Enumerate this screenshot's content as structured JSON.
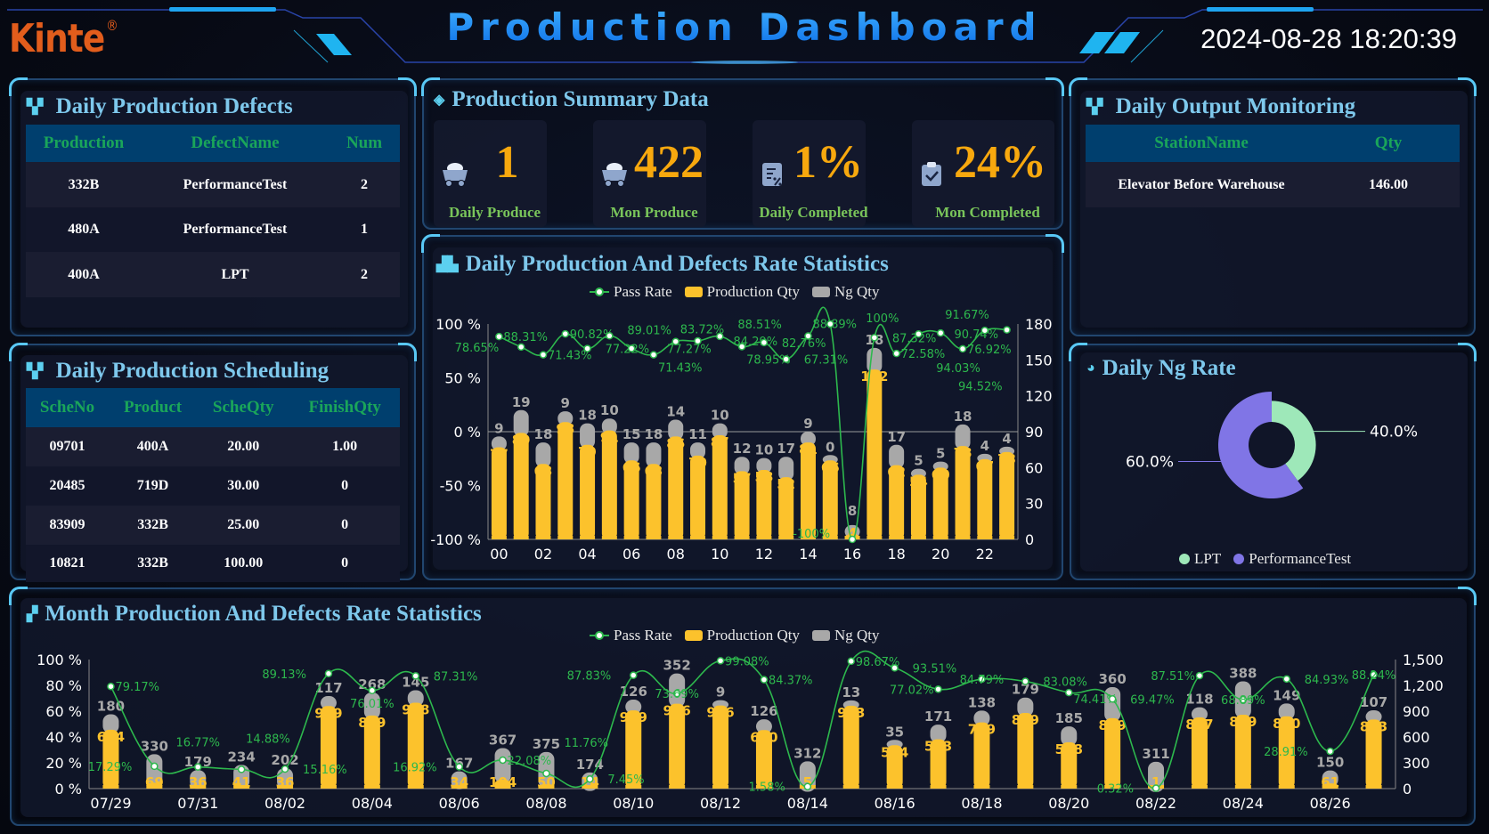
{
  "header": {
    "logo": "Kinte",
    "title": "Production Dashboard",
    "datetime": "2024-08-28 18:20:39"
  },
  "colors": {
    "accent": "#59c8f5",
    "production": "#fcc22c",
    "ng": "#a8a8a8",
    "pass_rate": "#2db84d",
    "lpt": "#9ee8b9",
    "performance_test": "#8075e6",
    "table_header_bg": "#003f6e",
    "table_header_text": "#1aa55a",
    "value": "#f7a80e"
  },
  "defects": {
    "title": "Daily Production Defects",
    "icon": "grid-icon",
    "columns": [
      "Production",
      "DefectName",
      "Num"
    ],
    "rows": [
      [
        "332B",
        "PerformanceTest",
        "2"
      ],
      [
        "480A",
        "PerformanceTest",
        "1"
      ],
      [
        "400A",
        "LPT",
        "2"
      ]
    ]
  },
  "summary": {
    "title": "Production Summary Data",
    "icon": "layers-icon",
    "cards": [
      {
        "value": "1",
        "label": "Daily Produce",
        "icon": "mine-cart-icon"
      },
      {
        "value": "422",
        "label": "Mon Produce",
        "icon": "mine-cart-icon"
      },
      {
        "value": "1%",
        "label": "Daily Completed",
        "icon": "percent-document-icon"
      },
      {
        "value": "24%",
        "label": "Mon Completed",
        "icon": "clipboard-check-icon"
      }
    ]
  },
  "output": {
    "title": "Daily Output Monitoring",
    "icon": "grid-icon",
    "columns": [
      "StationName",
      "Qty"
    ],
    "rows": [
      [
        "Elevator Before Warehouse",
        "146.00"
      ]
    ]
  },
  "scheduling": {
    "title": "Daily Production Scheduling",
    "icon": "grid-icon",
    "columns": [
      "ScheNo",
      "Product",
      "ScheQty",
      "FinishQty"
    ],
    "rows": [
      [
        "09701",
        "400A",
        "20.00",
        "1.00"
      ],
      [
        "20485",
        "719D",
        "30.00",
        "0"
      ],
      [
        "83909",
        "332B",
        "25.00",
        "0"
      ],
      [
        "10821",
        "332B",
        "100.00",
        "0"
      ]
    ]
  },
  "legend": {
    "pass_rate": "Pass Rate",
    "production": "Production Qty",
    "ng": "Ng Qty"
  },
  "ng_rate": {
    "title": "Daily Ng Rate",
    "icon": "pie-chart-icon"
  },
  "chart_data": [
    {
      "title": "Daily Production And Defects Rate Statistics",
      "type": "bar+line",
      "categories": [
        "00",
        "01",
        "02",
        "03",
        "04",
        "05",
        "06",
        "07",
        "08",
        "09",
        "10",
        "11",
        "12",
        "13",
        "14",
        "15",
        "16",
        "17",
        "18",
        "19",
        "20",
        "21",
        "22",
        "23"
      ],
      "series": [
        {
          "name": "Production Qty",
          "type": "bar",
          "axis": "right",
          "stack": "total",
          "values": [
            77,
            89,
            63,
            98,
            79,
            91,
            66,
            63,
            86,
            70,
            87,
            57,
            58,
            52,
            81,
            66,
            4,
            142,
            62,
            54,
            60,
            78,
            67,
            73
          ]
        },
        {
          "name": "Ng Qty",
          "type": "bar",
          "axis": "right",
          "stack": "total",
          "values": [
            9,
            19,
            18,
            9,
            18,
            10,
            15,
            18,
            14,
            11,
            10,
            12,
            10,
            17,
            9,
            0,
            8,
            18,
            17,
            5,
            5,
            18,
            4,
            4
          ]
        },
        {
          "name": "Pass Rate",
          "type": "line",
          "axis": "left",
          "unit": "%",
          "values": [
            88.31,
            78.65,
            71.43,
            90.82,
            77.22,
            89.01,
            77.27,
            71.43,
            83.72,
            84.29,
            88.51,
            78.95,
            82.76,
            67.31,
            88.89,
            100,
            -100,
            87.32,
            72.58,
            90.74,
            91.67,
            76.92,
            94.03,
            94.52
          ]
        }
      ],
      "y_left": {
        "range": [
          -100,
          100
        ],
        "ticks": [
          -100,
          -50,
          0,
          50,
          100
        ]
      },
      "y_right": {
        "range": [
          0,
          180
        ],
        "ticks": [
          0,
          30,
          60,
          90,
          120,
          150,
          180
        ]
      },
      "x_tick_labels": [
        "00",
        "02",
        "04",
        "06",
        "08",
        "10",
        "12",
        "14",
        "16",
        "18",
        "20",
        "22"
      ],
      "legend": "top-center",
      "grid": false
    },
    {
      "title": "Month Production And Defects Rate Statistics",
      "type": "bar+line",
      "categories": [
        "07/29",
        "07/30",
        "07/31",
        "08/01",
        "08/02",
        "08/03",
        "08/04",
        "08/05",
        "08/06",
        "08/07",
        "08/08",
        "08/09",
        "08/10",
        "08/11",
        "08/12",
        "08/13",
        "08/14",
        "08/15",
        "08/16",
        "08/17",
        "08/18",
        "08/19",
        "08/20",
        "08/21",
        "08/22",
        "08/23",
        "08/24",
        "08/25",
        "08/26",
        "08/27"
      ],
      "series": [
        {
          "name": "Production Qty",
          "type": "bar",
          "axis": "right",
          "values": [
            684,
            69,
            36,
            41,
            36,
            959,
            849,
            998,
            34,
            104,
            50,
            14,
            909,
            986,
            966,
            680,
            5,
            963,
            504,
            573,
            769,
            879,
            538,
            819,
            1,
            827,
            859,
            840,
            61,
            803
          ]
        },
        {
          "name": "Ng Qty",
          "type": "bar",
          "axis": "right",
          "values": [
            180,
            330,
            179,
            234,
            202,
            117,
            268,
            145,
            167,
            367,
            375,
            174,
            126,
            352,
            9,
            126,
            312,
            13,
            35,
            171,
            138,
            179,
            185,
            360,
            311,
            118,
            388,
            149,
            150,
            107
          ]
        },
        {
          "name": "Pass Rate",
          "type": "line",
          "axis": "left",
          "unit": "%",
          "values": [
            79.17,
            17.29,
            16.77,
            14.88,
            15.16,
            89.13,
            76.01,
            87.31,
            16.92,
            22.08,
            11.76,
            7.45,
            87.83,
            73.69,
            99.08,
            84.37,
            1.58,
            98.67,
            93.51,
            77.02,
            84.79,
            83.08,
            74.41,
            69.47,
            0.32,
            87.51,
            68.89,
            84.93,
            28.91,
            88.24
          ]
        }
      ],
      "y_left": {
        "range": [
          0,
          100
        ],
        "ticks": [
          0,
          20,
          40,
          60,
          80,
          100
        ]
      },
      "y_right": {
        "range": [
          0,
          1500
        ],
        "ticks": [
          0,
          300,
          600,
          900,
          1200,
          1500
        ]
      },
      "x_tick_labels": [
        "07/29",
        "07/31",
        "08/02",
        "08/04",
        "08/06",
        "08/08",
        "08/10",
        "08/12",
        "08/14",
        "08/16",
        "08/18",
        "08/20",
        "08/22",
        "08/24",
        "08/26"
      ],
      "legend": "top-center",
      "grid": false
    },
    {
      "title": "Daily Ng Rate",
      "type": "pie",
      "variant": "rose-donut",
      "slices": [
        {
          "name": "LPT",
          "value": 40.0,
          "label": "40.0%"
        },
        {
          "name": "PerformanceTest",
          "value": 60.0,
          "label": "60.0%"
        }
      ],
      "legend": "bottom-center"
    }
  ]
}
